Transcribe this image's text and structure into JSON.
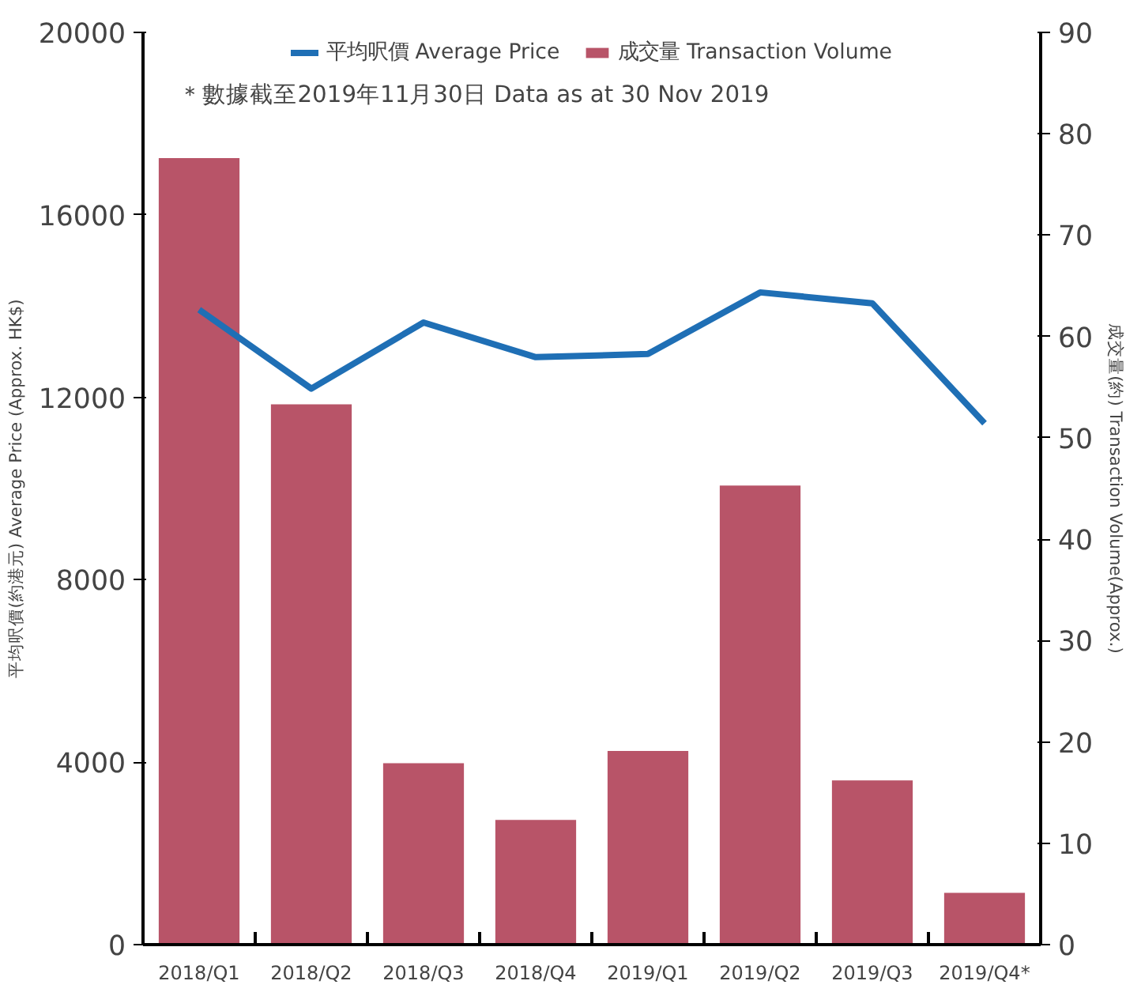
{
  "chart_data": {
    "type": "bar",
    "categories": [
      "2018/Q1",
      "2018/Q2",
      "2018/Q3",
      "2018/Q4",
      "2019/Q1",
      "2019/Q2",
      "2019/Q3",
      "2019/Q4*"
    ],
    "series": [
      {
        "name": "成交量 Transaction Volume",
        "axis": "y2",
        "color": "#b85468",
        "values": [
          77.6,
          53.3,
          17.9,
          12.3,
          19.1,
          45.3,
          16.2,
          5.1
        ]
      },
      {
        "name": "平均呎價 Average Price",
        "type": "line",
        "color": "#1f6fb5",
        "values": [
          13920,
          12190,
          13640,
          12880,
          12950,
          14300,
          14060,
          11430
        ]
      }
    ],
    "ylabel": "平均呎價(約港元) Average Price (Approx. HK$)",
    "y2label": "成交量(約) Transaction Volume(Approx.)",
    "ylim": [
      0,
      20000
    ],
    "yticks": [
      0,
      4000,
      8000,
      12000,
      16000,
      20000
    ],
    "y2lim": [
      0,
      90
    ],
    "y2ticks": [
      0,
      10,
      20,
      30,
      40,
      50,
      60,
      70,
      80,
      90
    ],
    "annotations": [
      "＊數據截至2019年11月30日  Data as at 30 Nov 2019"
    ],
    "legend": "top",
    "grid": false
  }
}
